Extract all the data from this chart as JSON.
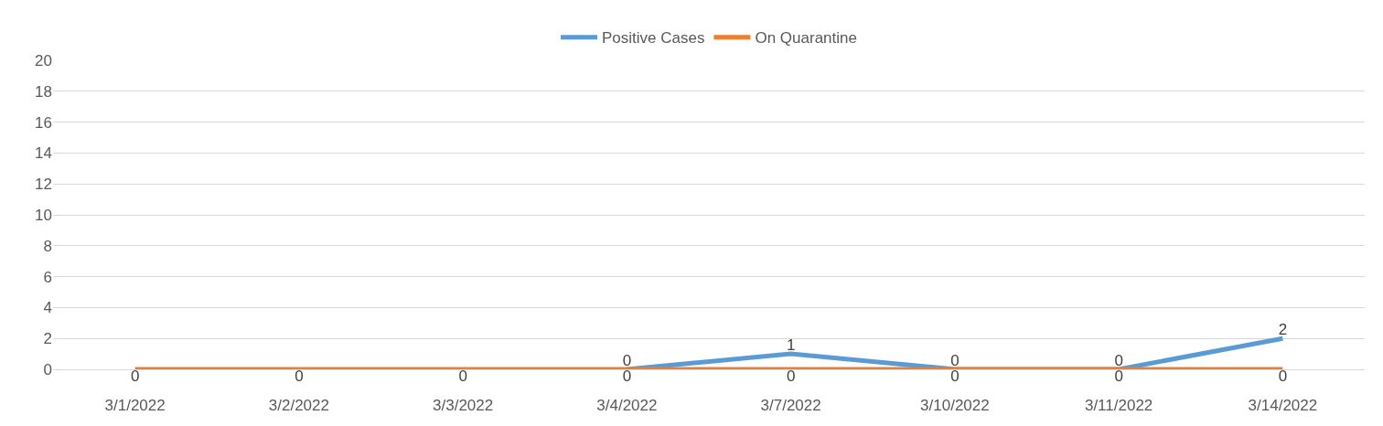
{
  "chart_data": {
    "type": "line",
    "categories": [
      "3/1/2022",
      "3/2/2022",
      "3/3/2022",
      "3/4/2022",
      "3/7/2022",
      "3/10/2022",
      "3/11/2022",
      "3/14/2022"
    ],
    "series": [
      {
        "name": "Positive Cases",
        "color": "#5b9bd5",
        "values": [
          null,
          null,
          null,
          0,
          1,
          0,
          0,
          2
        ]
      },
      {
        "name": "On Quarantine",
        "color": "#ed7d31",
        "values": [
          0,
          0,
          0,
          0,
          0,
          0,
          0,
          0
        ]
      }
    ],
    "ylim": [
      0,
      20
    ],
    "yticks": [
      0,
      2,
      4,
      6,
      8,
      10,
      12,
      14,
      16,
      18,
      20
    ],
    "grid": "y",
    "legend": "top",
    "data_labels": true,
    "marker": "none",
    "line_style": "solid"
  }
}
